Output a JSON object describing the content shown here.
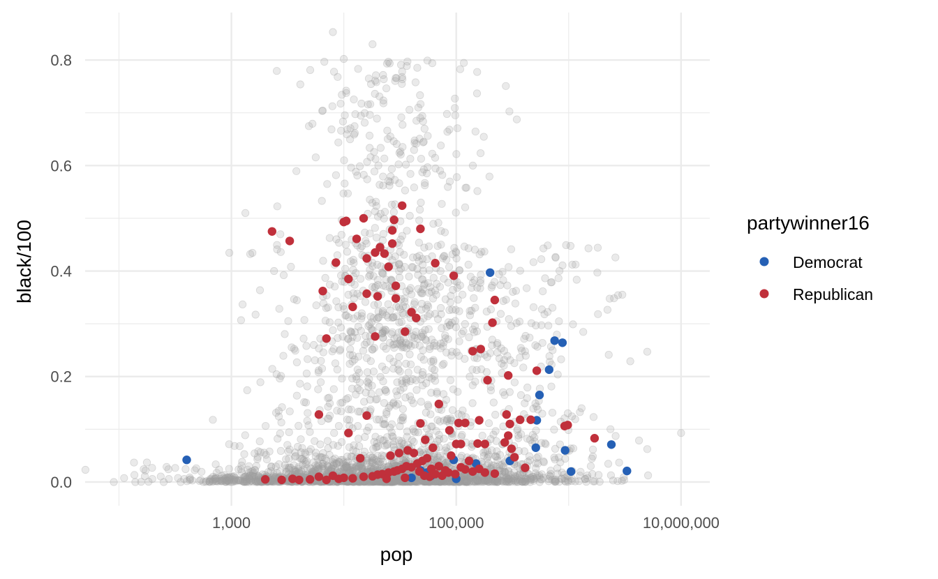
{
  "chart_data": {
    "type": "scatter",
    "xlabel": "pop",
    "ylabel": "black/100",
    "x_scale": "log10",
    "xlim": [
      50,
      18000000
    ],
    "ylim": [
      -0.045,
      0.89
    ],
    "x_ticks": [
      {
        "value": 1000,
        "label": "1,000"
      },
      {
        "value": 100000,
        "label": "100,000"
      },
      {
        "value": 10000000,
        "label": "10,000,000"
      }
    ],
    "x_minor_breaks": [
      100,
      10000,
      1000000
    ],
    "y_ticks": [
      {
        "value": 0.0,
        "label": "0.0"
      },
      {
        "value": 0.2,
        "label": "0.2"
      },
      {
        "value": 0.4,
        "label": "0.4"
      },
      {
        "value": 0.6,
        "label": "0.6"
      },
      {
        "value": 0.8,
        "label": "0.8"
      }
    ],
    "y_minor_breaks": [
      0.1,
      0.3,
      0.5,
      0.7
    ],
    "grid": true,
    "legend": {
      "title": "partywinner16",
      "position": "right",
      "entries": [
        {
          "name": "Democrat",
          "color": "#2560b5"
        },
        {
          "name": "Republican",
          "color": "#c0303b"
        }
      ]
    },
    "colors": {
      "background_points": "#9e9e9e",
      "Democrat": "#2560b5",
      "Republican": "#c0303b",
      "grid": "#ebebeb"
    },
    "background_points_note_free": true,
    "series": [
      {
        "name": "Democrat",
        "points": [
          [
            400,
            0.042
          ],
          [
            200000,
            0.397
          ],
          [
            750000,
            0.268
          ],
          [
            880000,
            0.264
          ],
          [
            670000,
            0.213
          ],
          [
            550000,
            0.165
          ],
          [
            520000,
            0.117
          ],
          [
            510000,
            0.065
          ],
          [
            930000,
            0.06
          ],
          [
            1050000,
            0.02
          ],
          [
            2400000,
            0.071
          ],
          [
            3300000,
            0.021
          ],
          [
            95000,
            0.042
          ],
          [
            150000,
            0.035
          ],
          [
            48000,
            0.022
          ],
          [
            55000,
            0.018
          ],
          [
            40000,
            0.008
          ],
          [
            100000,
            0.006
          ],
          [
            300000,
            0.04
          ],
          [
            60000,
            0.012
          ]
        ]
      },
      {
        "name": "Republican",
        "points": [
          [
            2300,
            0.475
          ],
          [
            3300,
            0.457
          ],
          [
            33000,
            0.524
          ],
          [
            28000,
            0.497
          ],
          [
            48000,
            0.48
          ],
          [
            10000,
            0.493
          ],
          [
            15000,
            0.5
          ],
          [
            10500,
            0.495
          ],
          [
            27000,
            0.477
          ],
          [
            21000,
            0.445
          ],
          [
            23000,
            0.433
          ],
          [
            19000,
            0.435
          ],
          [
            27000,
            0.452
          ],
          [
            13000,
            0.461
          ],
          [
            8500,
            0.416
          ],
          [
            16000,
            0.424
          ],
          [
            25000,
            0.408
          ],
          [
            65000,
            0.415
          ],
          [
            95000,
            0.391
          ],
          [
            11000,
            0.385
          ],
          [
            6500,
            0.362
          ],
          [
            16000,
            0.357
          ],
          [
            20000,
            0.352
          ],
          [
            29000,
            0.372
          ],
          [
            29000,
            0.348
          ],
          [
            12000,
            0.332
          ],
          [
            40000,
            0.322
          ],
          [
            44000,
            0.311
          ],
          [
            220000,
            0.345
          ],
          [
            210000,
            0.302
          ],
          [
            7000,
            0.272
          ],
          [
            19000,
            0.276
          ],
          [
            35000,
            0.285
          ],
          [
            140000,
            0.248
          ],
          [
            165000,
            0.252
          ],
          [
            190000,
            0.193
          ],
          [
            290000,
            0.202
          ],
          [
            520000,
            0.211
          ],
          [
            6000,
            0.128
          ],
          [
            16000,
            0.126
          ],
          [
            11000,
            0.093
          ],
          [
            48000,
            0.111
          ],
          [
            70000,
            0.148
          ],
          [
            105000,
            0.112
          ],
          [
            120000,
            0.112
          ],
          [
            160000,
            0.117
          ],
          [
            280000,
            0.128
          ],
          [
            300000,
            0.11
          ],
          [
            370000,
            0.118
          ],
          [
            460000,
            0.118
          ],
          [
            920000,
            0.106
          ],
          [
            980000,
            0.108
          ],
          [
            1700000,
            0.083
          ],
          [
            53000,
            0.08
          ],
          [
            87000,
            0.098
          ],
          [
            100000,
            0.072
          ],
          [
            110000,
            0.072
          ],
          [
            155000,
            0.073
          ],
          [
            180000,
            0.072
          ],
          [
            290000,
            0.088
          ],
          [
            270000,
            0.075
          ],
          [
            310000,
            0.063
          ],
          [
            330000,
            0.047
          ],
          [
            410000,
            0.027
          ],
          [
            2000,
            0.005
          ],
          [
            2800,
            0.004
          ],
          [
            4000,
            0.004
          ],
          [
            5000,
            0.005
          ],
          [
            7000,
            0.004
          ],
          [
            9000,
            0.006
          ],
          [
            12000,
            0.007
          ],
          [
            15000,
            0.01
          ],
          [
            18000,
            0.011
          ],
          [
            20000,
            0.014
          ],
          [
            22000,
            0.015
          ],
          [
            25000,
            0.018
          ],
          [
            28000,
            0.02
          ],
          [
            30000,
            0.022
          ],
          [
            33000,
            0.025
          ],
          [
            36000,
            0.03
          ],
          [
            40000,
            0.028
          ],
          [
            45000,
            0.035
          ],
          [
            50000,
            0.04
          ],
          [
            55000,
            0.045
          ],
          [
            60000,
            0.025
          ],
          [
            65000,
            0.015
          ],
          [
            70000,
            0.03
          ],
          [
            75000,
            0.012
          ],
          [
            80000,
            0.022
          ],
          [
            85000,
            0.018
          ],
          [
            90000,
            0.05
          ],
          [
            98000,
            0.015
          ],
          [
            110000,
            0.028
          ],
          [
            120000,
            0.024
          ],
          [
            130000,
            0.04
          ],
          [
            140000,
            0.02
          ],
          [
            160000,
            0.025
          ],
          [
            180000,
            0.018
          ],
          [
            220000,
            0.016
          ],
          [
            26000,
            0.05
          ],
          [
            31000,
            0.055
          ],
          [
            37000,
            0.06
          ],
          [
            42000,
            0.055
          ],
          [
            14000,
            0.045
          ],
          [
            35000,
            0.008
          ],
          [
            24000,
            0.006
          ],
          [
            6000,
            0.01
          ],
          [
            8000,
            0.012
          ],
          [
            10000,
            0.008
          ],
          [
            3500,
            0.006
          ],
          [
            62000,
            0.065
          ],
          [
            58000,
            0.01
          ],
          [
            47000,
            0.02
          ],
          [
            52000,
            0.012
          ]
        ]
      }
    ]
  }
}
